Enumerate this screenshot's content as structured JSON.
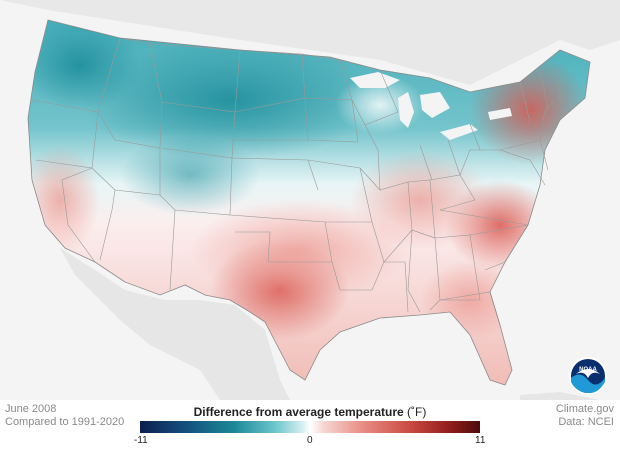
{
  "map": {
    "month_label": "June 2008",
    "baseline_label": "Compared to 1991-2020",
    "credit_source": "Climate.gov",
    "credit_data": "Data: NCEI",
    "logo_text": "NOAA"
  },
  "legend": {
    "title": "Difference from average temperature",
    "unit": "(˚F)",
    "min_label": "-11",
    "mid_label": "0",
    "max_label": "11",
    "colors": {
      "cold_extreme": "#0b1f4f",
      "cool": "#1d8a98",
      "neutral": "#ffffff",
      "warm": "#e88a82",
      "hot_extreme": "#4a0c0c"
    }
  }
}
